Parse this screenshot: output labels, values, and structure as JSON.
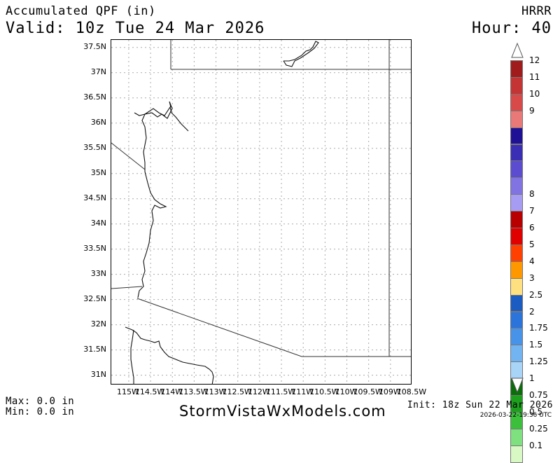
{
  "header": {
    "title": "Accumulated QPF (in)",
    "valid": "Valid: 10z Tue 24 Mar 2026",
    "model": "HRRR",
    "hour": "Hour: 40"
  },
  "map": {
    "lat_ticks": [
      "37.5N",
      "37N",
      "36.5N",
      "36N",
      "35.5N",
      "35N",
      "34.5N",
      "34N",
      "33.5N",
      "33N",
      "32.5N",
      "32N",
      "31.5N",
      "31N"
    ],
    "lat_values": [
      37.5,
      37,
      36.5,
      36,
      35.5,
      35,
      34.5,
      34,
      33.5,
      33,
      32.5,
      32,
      31.5,
      31
    ],
    "lon_ticks": [
      "115W",
      "114.5W",
      "114W",
      "113.5W",
      "113W",
      "112.5W",
      "112W",
      "111.5W",
      "111W",
      "110.5W",
      "110W",
      "109.5W",
      "109W",
      "108.5W"
    ],
    "lon_values": [
      -115,
      -114.5,
      -114,
      -113.5,
      -113,
      -112.5,
      -112,
      -111.5,
      -111,
      -110.5,
      -110,
      -109.5,
      -109,
      -108.5
    ],
    "grid": true,
    "lat_range": [
      30.8,
      37.65
    ],
    "lon_range": [
      -115.4,
      -108.5
    ]
  },
  "legend": {
    "labels": [
      "12",
      "11",
      "10",
      "9",
      "8",
      "7",
      "6",
      "5",
      "4",
      "3",
      "2.5",
      "2",
      "1.75",
      "1.5",
      "1.25",
      "1",
      "0.75",
      "0.5",
      "0.25",
      "0.1"
    ],
    "colors": [
      "#a01c1c",
      "#c43434",
      "#d84a4a",
      "#e97878",
      "#1f1196",
      "#3a2eb4",
      "#5c4dd0",
      "#8173e2",
      "#a79cf4",
      "#b80000",
      "#e00000",
      "#ff4000",
      "#ff9800",
      "#ffe080",
      "#1b5cc2",
      "#2a74dc",
      "#4893ea",
      "#72b4f2",
      "#a8d4f8",
      "#0a6e0a",
      "#1ea01e",
      "#3cc03c",
      "#7ee07e",
      "#d8f8c4"
    ]
  },
  "footer": {
    "max": "Max: 0.0 in",
    "min": "Min: 0.0 in",
    "site": "StormVistaWxModels.com",
    "init": "Init: 18z Sun 22 Mar 2026",
    "stamp": "2026-03-22-19:36 UTC"
  }
}
